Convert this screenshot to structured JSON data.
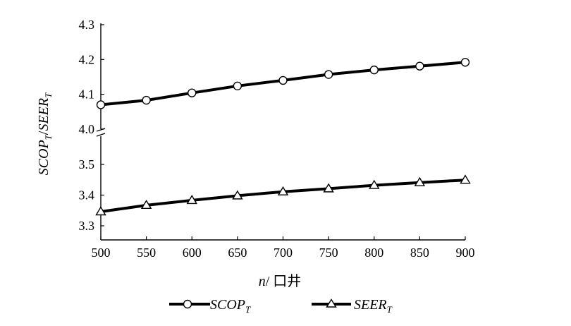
{
  "chart_data": {
    "type": "line",
    "x_axis": {
      "label_var": "n",
      "label_unit": "口井",
      "ticks": [
        "500",
        "550",
        "600",
        "650",
        "700",
        "750",
        "800",
        "850",
        "900"
      ],
      "range": [
        500,
        900
      ]
    },
    "y_axis": {
      "label_parts": [
        {
          "text": "SCOP",
          "style": "italic"
        },
        {
          "text": "T",
          "style": "italic-sub"
        },
        {
          "text": "/",
          "style": "normal"
        },
        {
          "text": "SEER",
          "style": "italic"
        },
        {
          "text": "T",
          "style": "italic-sub"
        }
      ],
      "broken": true,
      "upper_segment": {
        "range": [
          4.0,
          4.3
        ],
        "ticks": [
          "4.0",
          "4.1",
          "4.2",
          "4.3"
        ]
      },
      "lower_segment": {
        "range": [
          3.28,
          3.52
        ],
        "ticks": [
          "3.3",
          "3.4",
          "3.5"
        ]
      }
    },
    "x": [
      500,
      550,
      600,
      650,
      700,
      750,
      800,
      850,
      900
    ],
    "series": [
      {
        "name": "SCOP",
        "name_sub": "T",
        "marker": "circle",
        "segment": "upper",
        "values": [
          4.07,
          4.083,
          4.104,
          4.124,
          4.14,
          4.157,
          4.17,
          4.181,
          4.192
        ]
      },
      {
        "name": "SEER",
        "name_sub": "T",
        "marker": "triangle",
        "segment": "lower",
        "values": [
          3.346,
          3.367,
          3.383,
          3.398,
          3.411,
          3.421,
          3.432,
          3.441,
          3.449
        ]
      }
    ],
    "grid": false,
    "legend_position": "bottom"
  }
}
